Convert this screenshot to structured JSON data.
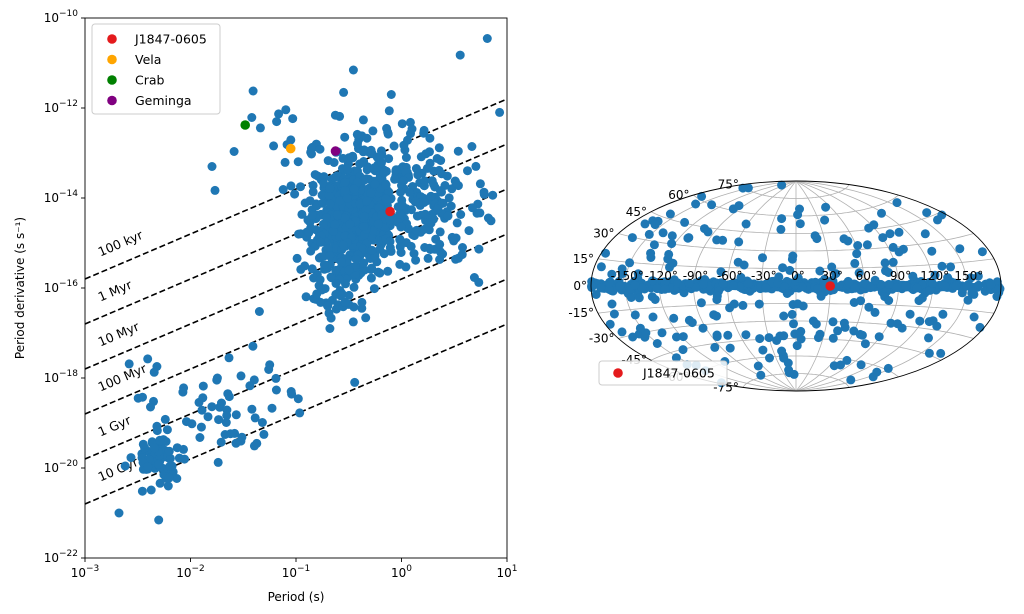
{
  "chart_data": [
    {
      "type": "scatter",
      "title": "",
      "xlabel": "Period (s)",
      "ylabel": "Period derivative (s s⁻¹)",
      "xscale": "log",
      "yscale": "log",
      "xlim": [
        0.001,
        10
      ],
      "ylim": [
        1e-22,
        1e-10
      ],
      "x_ticks": [
        {
          "value": 0.001,
          "base": "10",
          "exp": "−3"
        },
        {
          "value": 0.01,
          "base": "10",
          "exp": "−2"
        },
        {
          "value": 0.1,
          "base": "10",
          "exp": "−1"
        },
        {
          "value": 1,
          "base": "10",
          "exp": "0"
        },
        {
          "value": 10,
          "base": "10",
          "exp": "1"
        }
      ],
      "y_ticks": [
        {
          "value": 1e-22,
          "base": "10",
          "exp": "−22"
        },
        {
          "value": 1e-20,
          "base": "10",
          "exp": "−20"
        },
        {
          "value": 1e-18,
          "base": "10",
          "exp": "−18"
        },
        {
          "value": 1e-16,
          "base": "10",
          "exp": "−16"
        },
        {
          "value": 1e-14,
          "base": "10",
          "exp": "−14"
        },
        {
          "value": 1e-12,
          "base": "10",
          "exp": "−12"
        },
        {
          "value": 1e-10,
          "base": "10",
          "exp": "−10"
        }
      ],
      "point_color": "#1f77b4",
      "age_lines": [
        {
          "label": "100 kyr",
          "tau_yr": 100000.0
        },
        {
          "label": "1 Myr",
          "tau_yr": 1000000.0
        },
        {
          "label": "10 Myr",
          "tau_yr": 10000000.0
        },
        {
          "label": "100 Myr",
          "tau_yr": 100000000.0
        },
        {
          "label": "1 Gyr",
          "tau_yr": 1000000000.0
        },
        {
          "label": "10 Gyr",
          "tau_yr": 10000000000.0
        }
      ],
      "highlights": [
        {
          "name": "J1847-0605",
          "color": "#e41a1c",
          "p": 0.78,
          "pdot": 5e-15
        },
        {
          "name": "Vela",
          "color": "#ffa500",
          "p": 0.089,
          "pdot": 1.25e-13
        },
        {
          "name": "Crab",
          "color": "#008000",
          "p": 0.033,
          "pdot": 4.2e-13
        },
        {
          "name": "Geminga",
          "color": "#800080",
          "p": 0.237,
          "pdot": 1.1e-13
        }
      ],
      "legend": [
        "J1847-0605",
        "Vela",
        "Crab",
        "Geminga"
      ],
      "legend_loc": "upper-left",
      "series": [
        {
          "name": "pulsar-population",
          "clusters": [
            {
              "center": [
                -0.45,
                -14.4
              ],
              "spread": [
                0.2,
                0.55
              ],
              "n": 520,
              "seed": 11
            },
            {
              "center": [
                -0.1,
                -13.6
              ],
              "spread": [
                0.35,
                0.5
              ],
              "n": 140,
              "seed": 23
            },
            {
              "center": [
                -0.6,
                -15.8
              ],
              "spread": [
                0.15,
                0.5
              ],
              "n": 80,
              "seed": 37
            },
            {
              "center": [
                0.35,
                -14.6
              ],
              "spread": [
                0.3,
                0.5
              ],
              "n": 90,
              "seed": 41
            },
            {
              "center": [
                -2.3,
                -19.8
              ],
              "spread": [
                0.12,
                0.3
              ],
              "n": 70,
              "seed": 53
            },
            {
              "center": [
                -1.8,
                -18.6
              ],
              "spread": [
                0.45,
                0.7
              ],
              "n": 60,
              "seed": 61
            },
            {
              "center": [
                -0.7,
                -12.8
              ],
              "spread": [
                0.5,
                0.5
              ],
              "n": 40,
              "seed": 71
            }
          ],
          "extra_points": [
            [
              6.5,
              3.5e-11
            ],
            [
              3.6,
              1.5e-11
            ],
            [
              0.35,
              7e-12
            ],
            [
              0.016,
              5e-14
            ],
            [
              0.0048,
              1.8e-18
            ],
            [
              0.0021,
              1e-21
            ],
            [
              0.005,
              7e-22
            ],
            [
              8.5,
              8e-13
            ],
            [
              0.8,
              2e-12
            ],
            [
              0.09,
              5e-19
            ],
            [
              0.36,
              8e-19
            ],
            [
              0.2,
              4e-17
            ],
            [
              0.045,
              3e-17
            ],
            [
              0.018,
              1e-18
            ]
          ]
        }
      ]
    },
    {
      "type": "scatter",
      "projection": "aitoff",
      "title": "",
      "longitude_ticks": [
        "-150°",
        "-120°",
        "-90°",
        "-60°",
        "-30°",
        "0°",
        "30°",
        "60°",
        "90°",
        "120°",
        "150°"
      ],
      "longitude_values": [
        -150,
        -120,
        -90,
        -60,
        -30,
        0,
        30,
        60,
        90,
        120,
        150
      ],
      "latitude_ticks": [
        "-75°",
        "-60°",
        "-45°",
        "-30°",
        "-15°",
        "0°",
        "15°",
        "30°",
        "45°",
        "60°",
        "75°"
      ],
      "latitude_values": [
        -75,
        -60,
        -45,
        -30,
        -15,
        0,
        15,
        30,
        45,
        60,
        75
      ],
      "grid": true,
      "point_color": "#1f77b4",
      "highlight": {
        "name": "J1847-0605",
        "color": "#e41a1c",
        "lon_deg": 30,
        "lat_deg": 0
      },
      "legend": [
        "J1847-0605"
      ],
      "legend_loc": "lower-left",
      "series": [
        {
          "name": "galactic-positions",
          "plane_band": {
            "n": 420,
            "lat_sigma_deg": 2.0,
            "seed": 101
          },
          "scattered": {
            "n": 230,
            "seed": 202
          }
        }
      ]
    }
  ]
}
